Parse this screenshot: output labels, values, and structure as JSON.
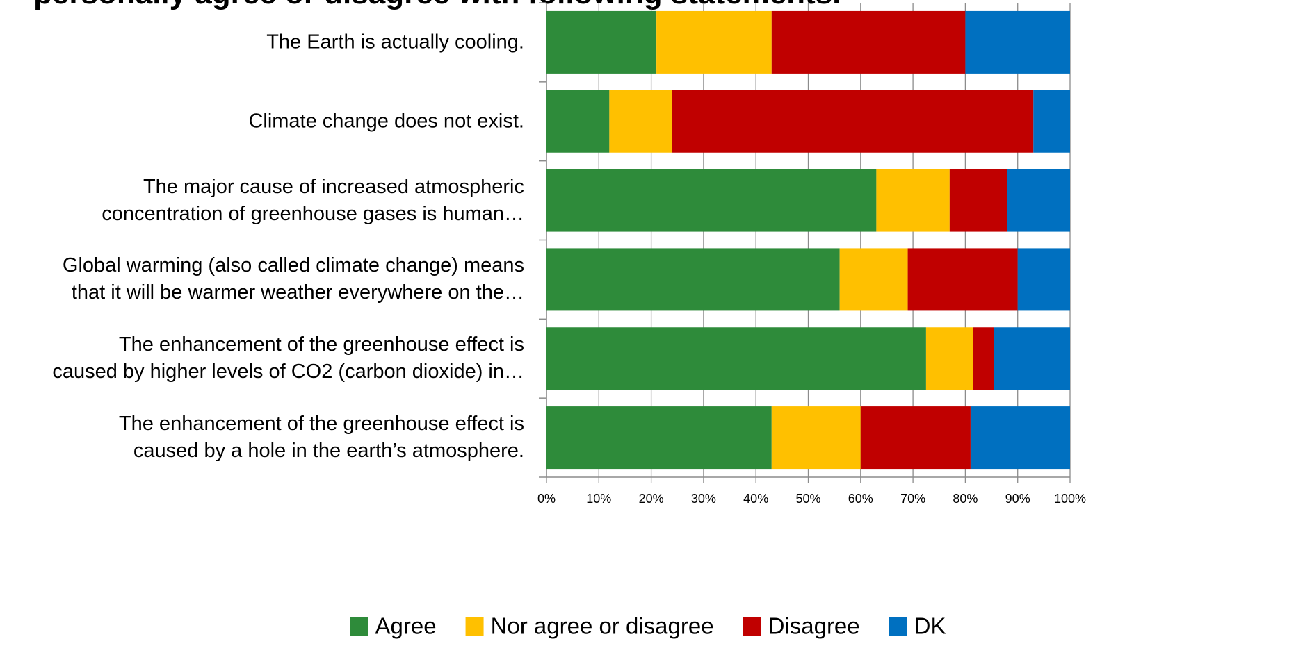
{
  "chart_data": {
    "type": "stacked-bar-horizontal",
    "title": "personally agree or disagree with following statements.",
    "categories": [
      "The Earth is actually cooling.",
      "Climate change does not exist.",
      "The major cause of increased atmospheric\nconcentration of greenhouse gases is human…",
      "Global warming (also called climate change) means\nthat it will be warmer weather everywhere on the…",
      "The enhancement of the greenhouse effect is\ncaused by higher levels of CO2 (carbon dioxide) in…",
      "The enhancement of the greenhouse effect is\ncaused by a hole in the earth’s atmosphere."
    ],
    "series": [
      {
        "name": "Agree",
        "color": "#2e8b3a",
        "values": [
          21,
          12,
          63,
          56,
          72.5,
          43
        ]
      },
      {
        "name": "Nor agree or disagree",
        "color": "#ffc000",
        "values": [
          22,
          12,
          14,
          13,
          9,
          17
        ]
      },
      {
        "name": "Disagree",
        "color": "#c00000",
        "values": [
          37,
          69,
          11,
          21,
          4,
          21
        ]
      },
      {
        "name": "DK",
        "color": "#0070c0",
        "values": [
          20,
          7,
          12,
          10,
          14.5,
          19
        ]
      }
    ],
    "xlim": [
      0,
      100
    ],
    "xticks": [
      {
        "value": 0,
        "label": "0%"
      },
      {
        "value": 10,
        "label": "10%"
      },
      {
        "value": 20,
        "label": "20%"
      },
      {
        "value": 30,
        "label": "30%"
      },
      {
        "value": 40,
        "label": "40%"
      },
      {
        "value": 50,
        "label": "50%"
      },
      {
        "value": 60,
        "label": "60%"
      },
      {
        "value": 70,
        "label": "70%"
      },
      {
        "value": 80,
        "label": "80%"
      },
      {
        "value": 90,
        "label": "90%"
      },
      {
        "value": 100,
        "label": "100%"
      }
    ],
    "grid": true,
    "legend": "bottom"
  }
}
